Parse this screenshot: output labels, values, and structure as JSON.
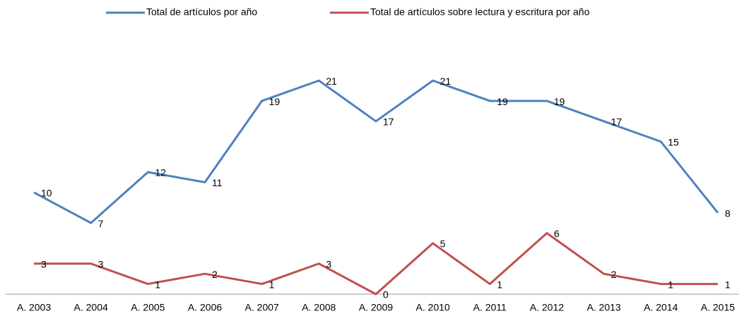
{
  "chart_data": {
    "type": "line",
    "categories": [
      "A. 2003",
      "A. 2004",
      "A. 2005",
      "A. 2006",
      "A. 2007",
      "A. 2008",
      "A. 2009",
      "A. 2010",
      "A. 2011",
      "A. 2012",
      "A. 2013",
      "A. 2014",
      "A. 2015"
    ],
    "series": [
      {
        "name": "Total de artículos por año",
        "color": "#4f81bd",
        "values": [
          10,
          7,
          12,
          11,
          19,
          21,
          17,
          21,
          19,
          19,
          17,
          15,
          8
        ]
      },
      {
        "name": "Total de artículos sobre lectura y escritura por año",
        "color": "#c0504d",
        "values": [
          3,
          3,
          1,
          2,
          1,
          3,
          0,
          5,
          1,
          6,
          2,
          1,
          1
        ]
      }
    ],
    "ylim": [
      0,
      24
    ],
    "legend": "top"
  }
}
